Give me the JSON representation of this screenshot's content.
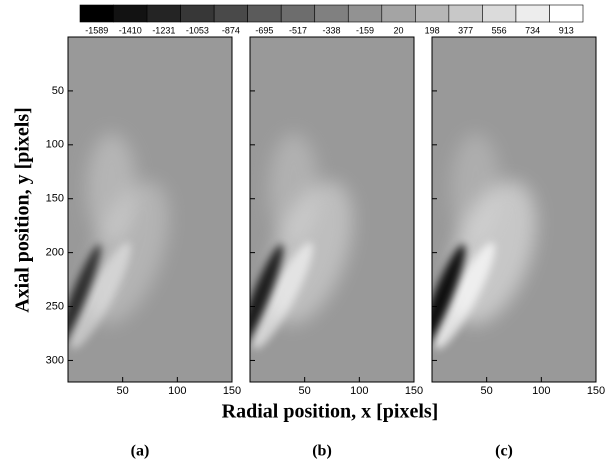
{
  "figure": {
    "xlabel": "Radial position, x [pixels]",
    "ylabel": "Axial position, y [pixels]",
    "colorbar": {
      "levels": [
        -1589,
        -1410,
        -1231,
        -1053,
        -874,
        -695,
        -517,
        -338,
        -159,
        20,
        198,
        377,
        556,
        734,
        913
      ]
    }
  },
  "chart_data": [
    {
      "type": "heatmap",
      "label": "(a)",
      "xlim": [
        0,
        150
      ],
      "ylim": [
        320,
        0
      ],
      "xticks": [
        50,
        100,
        150
      ],
      "yticks": [
        50,
        100,
        150,
        200,
        250,
        300
      ]
    },
    {
      "type": "heatmap",
      "label": "(b)",
      "xlim": [
        0,
        150
      ],
      "ylim": [
        320,
        0
      ],
      "xticks": [
        50,
        100,
        150
      ],
      "yticks": [
        50,
        100,
        150,
        200,
        250,
        300
      ]
    },
    {
      "type": "heatmap",
      "label": "(c)",
      "xlim": [
        0,
        150
      ],
      "ylim": [
        320,
        0
      ],
      "xticks": [
        50,
        100,
        150
      ],
      "yticks": [
        50,
        100,
        150,
        200,
        250,
        300
      ]
    }
  ]
}
